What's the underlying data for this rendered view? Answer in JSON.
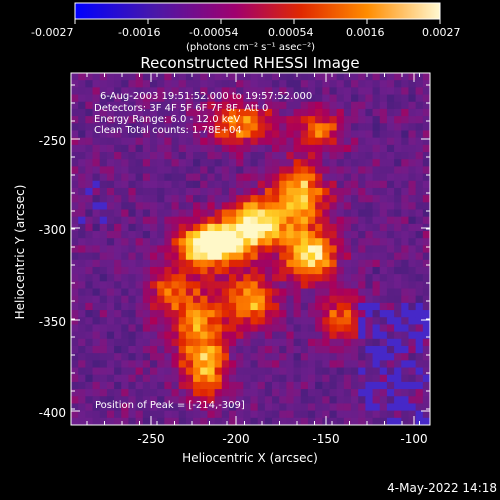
{
  "colorbar": {
    "tick_labels": [
      "-0.0027",
      "-0.0016",
      "-0.00054",
      "0.00054",
      "0.0016",
      "0.0027"
    ],
    "units_label": "(photons cm⁻² s⁻¹ asec⁻²)",
    "range": [
      -0.0027,
      0.0027
    ],
    "colors": [
      "#1b00ff",
      "#5a1aa8",
      "#a0007a",
      "#e83a00",
      "#ff9b00",
      "#fff7c0"
    ]
  },
  "plot": {
    "title": "Reconstructed RHESSI Image",
    "xlabel": "Heliocentric X (arcsec)",
    "ylabel": "Heliocentric Y (arcsec)",
    "x_ticks": [
      "-250",
      "-200",
      "-150",
      "-100"
    ],
    "y_ticks": [
      "-250",
      "-300",
      "-350",
      "-400"
    ],
    "x_range": [
      -290,
      -95
    ],
    "y_range": [
      -410,
      -220
    ],
    "annotation": {
      "line1": "6-Aug-2003 19:51:52.000 to 19:57:52.000",
      "line2": "Detectors: 3F 4F 5F 6F 7F 8F, Att 0",
      "line3": "Energy Range: 6.0 - 12.0 keV",
      "line4": "Clean     Total counts: 1.78E+04"
    },
    "peak_label": "Position of Peak = [-214,-309]"
  },
  "footer": {
    "timestamp": "4-May-2022 14:18"
  }
}
